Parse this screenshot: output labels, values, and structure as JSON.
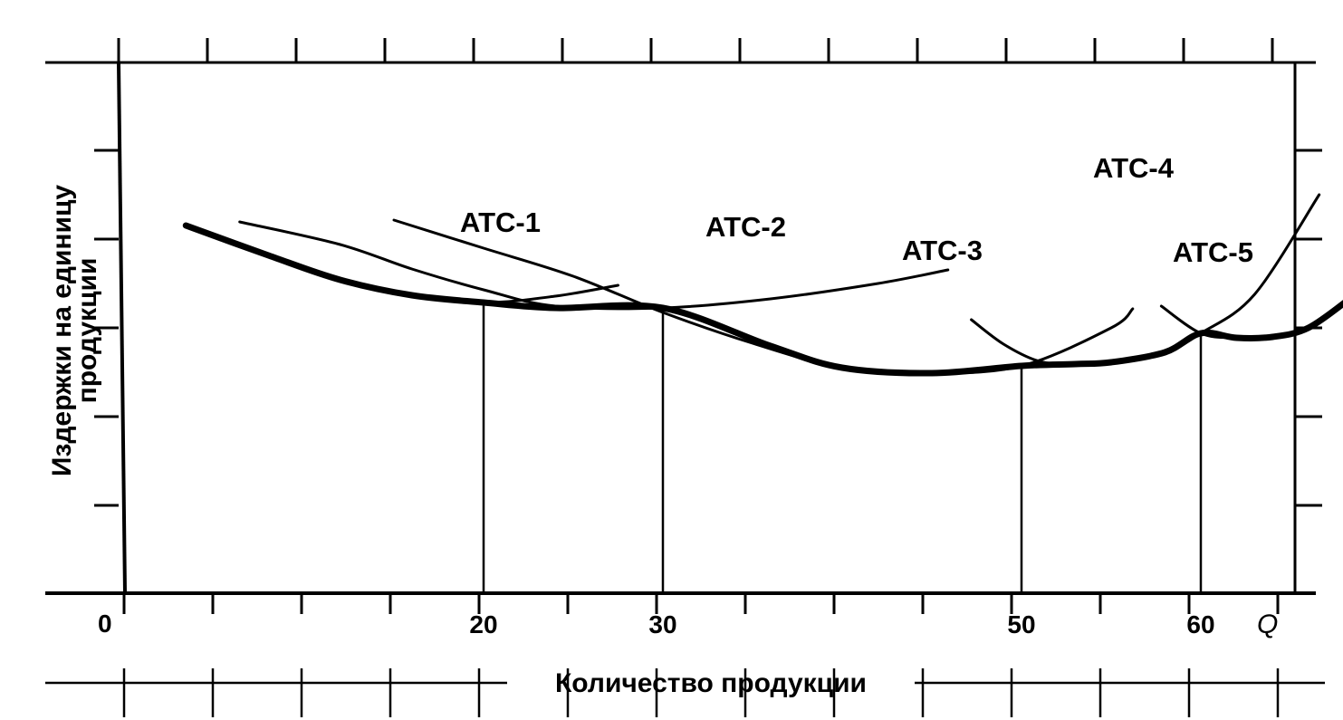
{
  "chart_data": {
    "type": "line",
    "xlabel": "Количество продукции",
    "ylabel_lines": [
      "Издержки на единицу",
      "продукции"
    ],
    "x_end_label": "Q",
    "origin_label": "0",
    "x_tick_labels": [
      "20",
      "30",
      "50",
      "60"
    ],
    "x_ticks": [
      20,
      30,
      50,
      60
    ],
    "xlim": [
      0,
      70
    ],
    "grid": false,
    "series": [
      {
        "name": "ATC-1",
        "x": [
          3.4,
          8,
          12,
          16,
          20,
          24,
          27.5
        ],
        "y": [
          40.6,
          37.3,
          34.6,
          32.9,
          32.1,
          32.8,
          34.0
        ]
      },
      {
        "name": "ATC-2",
        "x": [
          6.4,
          12,
          16,
          20,
          24,
          30,
          36,
          42,
          45.9
        ],
        "y": [
          41.0,
          38.5,
          35.8,
          33.5,
          31.7,
          31.5,
          32.5,
          34.2,
          35.7
        ]
      },
      {
        "name": "ATC-3",
        "x": [
          15,
          20,
          25,
          30,
          35,
          40,
          45,
          50,
          55,
          56.2
        ],
        "y": [
          41.2,
          38.1,
          35.0,
          31.0,
          27.6,
          24.9,
          24.3,
          25.1,
          29.3,
          31.4
        ]
      },
      {
        "name": "ATC-4",
        "x": [
          47.2,
          49,
          51,
          53,
          55,
          58,
          60,
          63,
          66.6
        ],
        "y": [
          30.2,
          27.5,
          25.6,
          25.3,
          25.5,
          26.6,
          28.7,
          33.0,
          44.0
        ]
      },
      {
        "name": "ATC-5",
        "x": [
          57.8,
          60,
          62,
          64,
          66,
          68.3
        ],
        "y": [
          31.7,
          28.7,
          28.2,
          28.3,
          29.3,
          32.5
        ]
      }
    ],
    "envelope": {
      "x": [
        3.4,
        8,
        12,
        16,
        20,
        24,
        30,
        36,
        40,
        45,
        50,
        53,
        55,
        58,
        60,
        62,
        64,
        66,
        68.3
      ],
      "y": [
        40.6,
        37.3,
        34.6,
        32.9,
        32.1,
        31.5,
        31.5,
        27.3,
        24.9,
        24.3,
        25.1,
        25.3,
        25.5,
        26.6,
        28.7,
        28.2,
        28.3,
        29.3,
        32.5
      ]
    },
    "drop_lines": [
      {
        "x": 20,
        "y": 32.1
      },
      {
        "x": 30,
        "y": 31.5
      },
      {
        "x": 50,
        "y": 25.1
      },
      {
        "x": 60,
        "y": 28.7
      }
    ]
  }
}
